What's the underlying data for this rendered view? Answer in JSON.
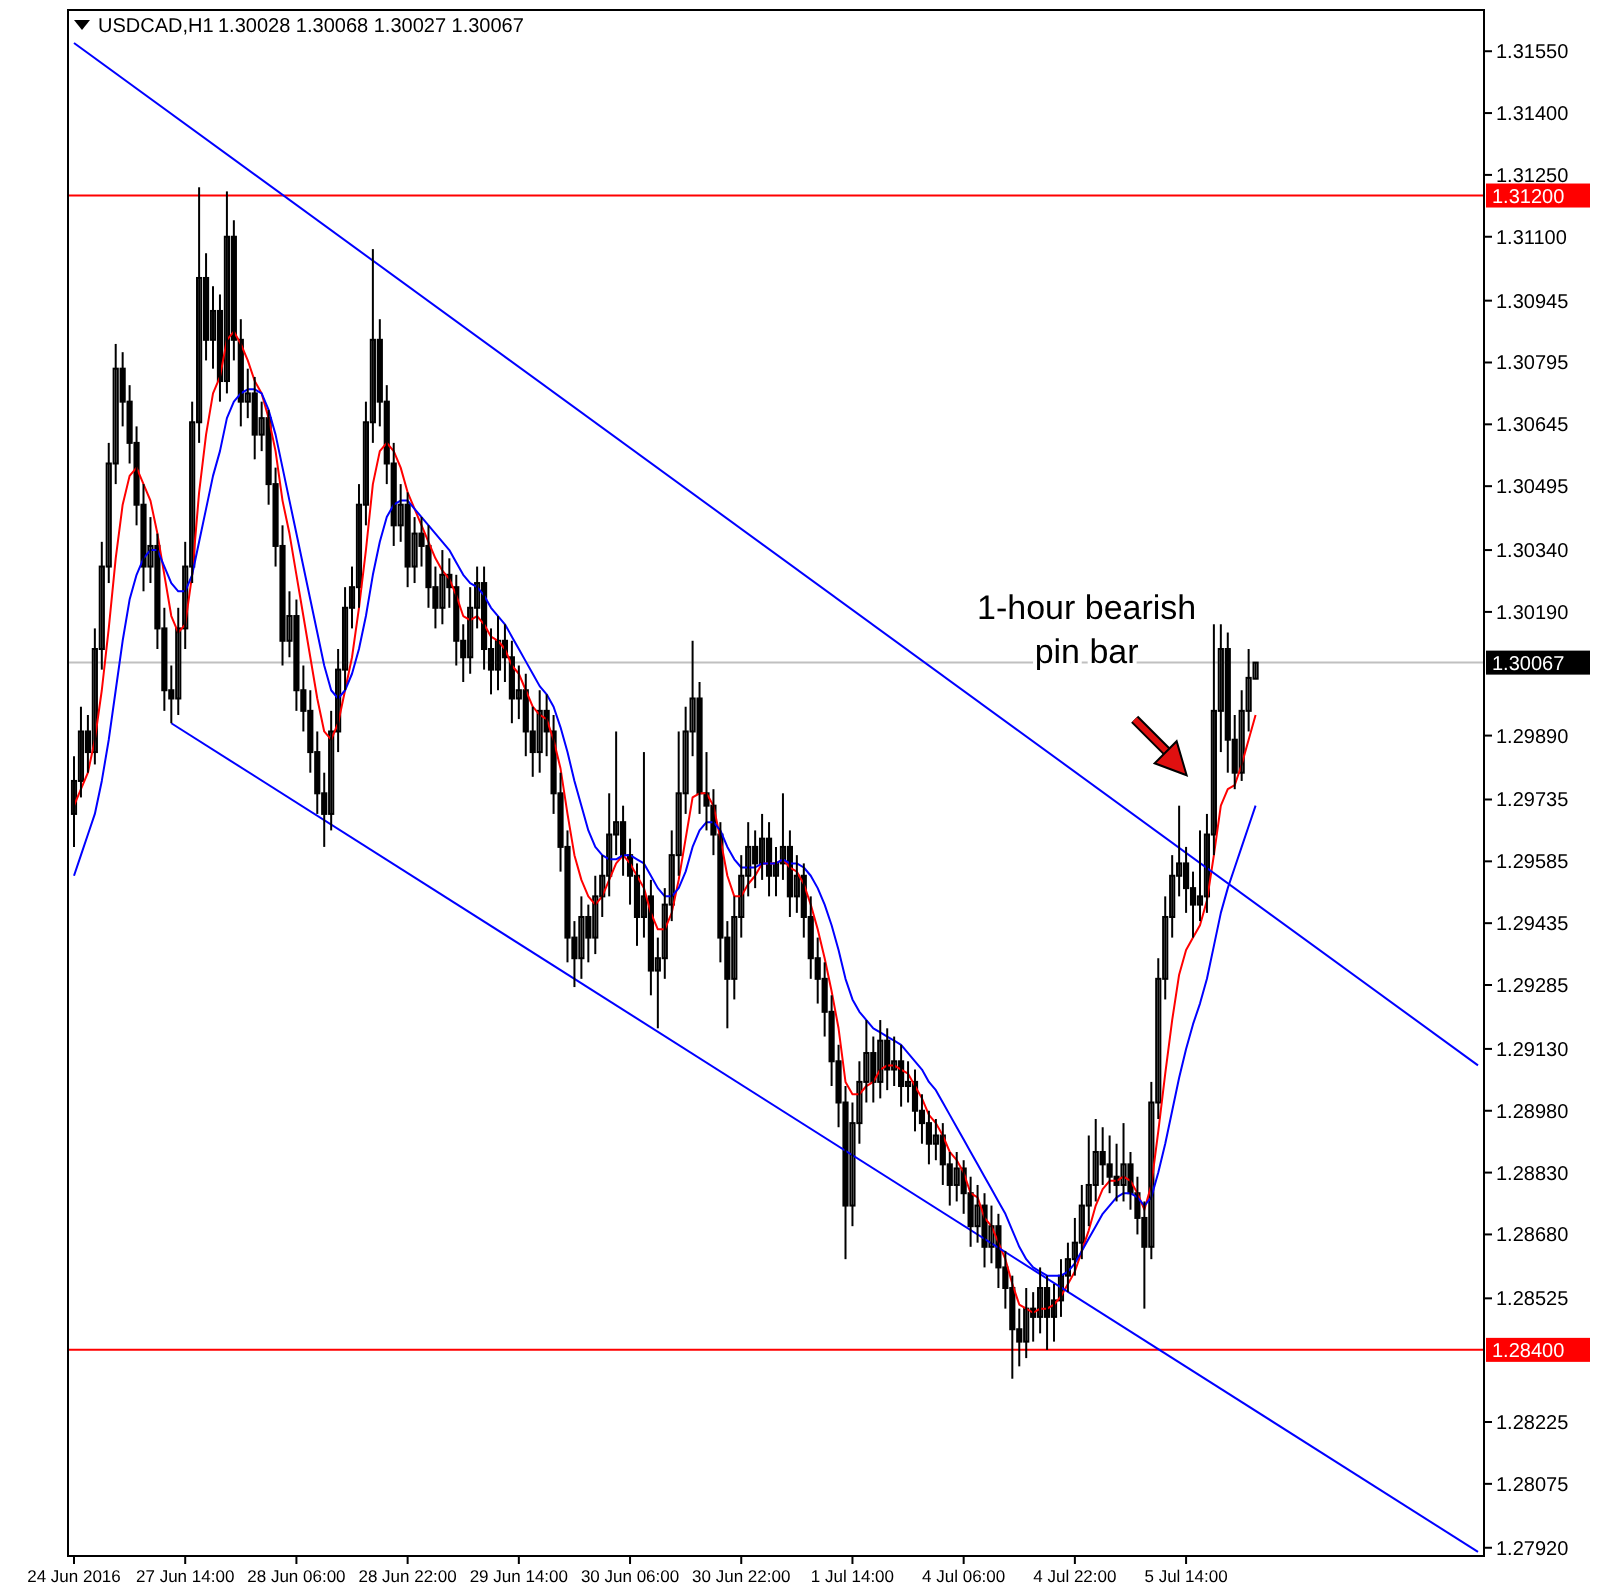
{
  "chart_data": {
    "type": "candlestick",
    "title": "USDCAD,H1",
    "subtitle": "1.30028 1.30068 1.30027 1.30067",
    "annotations": [
      "1-hour bearish pin bar"
    ],
    "categories": [
      "24 Jun 2016",
      null,
      null,
      null,
      null,
      null,
      null,
      null,
      null,
      null,
      null,
      null,
      null,
      null,
      null,
      null,
      "27 Jun 14:00",
      null,
      null,
      null,
      null,
      null,
      null,
      null,
      null,
      null,
      null,
      null,
      null,
      null,
      null,
      null,
      "28 Jun 06:00",
      null,
      null,
      null,
      null,
      null,
      null,
      null,
      null,
      null,
      null,
      null,
      null,
      null,
      null,
      null,
      "28 Jun 22:00",
      null,
      null,
      null,
      null,
      null,
      null,
      null,
      null,
      null,
      null,
      null,
      null,
      null,
      null,
      null,
      "29 Jun 14:00",
      null,
      null,
      null,
      null,
      null,
      null,
      null,
      null,
      null,
      null,
      null,
      null,
      null,
      null,
      null,
      "30 Jun 06:00",
      null,
      null,
      null,
      null,
      null,
      null,
      null,
      null,
      null,
      null,
      null,
      null,
      null,
      null,
      null,
      "30 Jun 22:00",
      null,
      null,
      null,
      null,
      null,
      null,
      null,
      null,
      null,
      null,
      null,
      null,
      null,
      null,
      null,
      "1 Jul 14:00",
      null,
      null,
      null,
      null,
      null,
      null,
      null,
      null,
      null,
      null,
      null,
      null,
      null,
      null,
      null,
      "4 Jul 06:00",
      null,
      null,
      null,
      null,
      null,
      null,
      null,
      null,
      null,
      null,
      null,
      null,
      null,
      null,
      null,
      "4 Jul 22:00",
      null,
      null,
      null,
      null,
      null,
      null,
      null,
      null,
      null,
      null,
      null,
      null,
      null,
      null,
      null,
      "5 Jul 14:00",
      null,
      null,
      null,
      null,
      null,
      null,
      null,
      null,
      null,
      null,
      null,
      null,
      null,
      null,
      null,
      null,
      null,
      null,
      null,
      null,
      null,
      null,
      null,
      null,
      null,
      null,
      null,
      null,
      null,
      null,
      null,
      null,
      null,
      null,
      null,
      null,
      null,
      null,
      null,
      null,
      null,
      null
    ],
    "ohlc": [
      [
        1.297,
        1.2984,
        1.2962,
        1.2978
      ],
      [
        1.2978,
        1.2996,
        1.2974,
        1.299
      ],
      [
        1.299,
        1.2994,
        1.298,
        1.2985
      ],
      [
        1.2985,
        1.3015,
        1.2982,
        1.301
      ],
      [
        1.301,
        1.3036,
        1.3005,
        1.303
      ],
      [
        1.303,
        1.306,
        1.3026,
        1.3055
      ],
      [
        1.3055,
        1.3084,
        1.305,
        1.3078
      ],
      [
        1.3078,
        1.3082,
        1.3064,
        1.307
      ],
      [
        1.307,
        1.3074,
        1.3055,
        1.306
      ],
      [
        1.306,
        1.3064,
        1.304,
        1.3045
      ],
      [
        1.3045,
        1.305,
        1.3024,
        1.303
      ],
      [
        1.303,
        1.3042,
        1.3026,
        1.3035
      ],
      [
        1.3035,
        1.3038,
        1.301,
        1.3015
      ],
      [
        1.3015,
        1.302,
        1.2995,
        1.3
      ],
      [
        1.3,
        1.3006,
        1.2992,
        1.2998
      ],
      [
        1.2998,
        1.302,
        1.2994,
        1.3015
      ],
      [
        1.3015,
        1.3036,
        1.301,
        1.303
      ],
      [
        1.303,
        1.307,
        1.3026,
        1.3065
      ],
      [
        1.3065,
        1.3122,
        1.306,
        1.31
      ],
      [
        1.31,
        1.3106,
        1.308,
        1.3085
      ],
      [
        1.3085,
        1.3098,
        1.3078,
        1.3092
      ],
      [
        1.3092,
        1.3096,
        1.307,
        1.3075
      ],
      [
        1.3075,
        1.3121,
        1.3072,
        1.311
      ],
      [
        1.311,
        1.3114,
        1.308,
        1.3085
      ],
      [
        1.3085,
        1.309,
        1.3064,
        1.307
      ],
      [
        1.307,
        1.3078,
        1.3066,
        1.3072
      ],
      [
        1.3072,
        1.3076,
        1.3056,
        1.3062
      ],
      [
        1.3062,
        1.307,
        1.3058,
        1.3066
      ],
      [
        1.3066,
        1.3068,
        1.3045,
        1.305
      ],
      [
        1.305,
        1.3054,
        1.303,
        1.3035
      ],
      [
        1.3035,
        1.304,
        1.3006,
        1.3012
      ],
      [
        1.3012,
        1.3024,
        1.3008,
        1.3018
      ],
      [
        1.3018,
        1.3022,
        1.2995,
        1.3
      ],
      [
        1.3,
        1.3006,
        1.299,
        1.2995
      ],
      [
        1.2995,
        1.3,
        1.298,
        1.2985
      ],
      [
        1.2985,
        1.299,
        1.297,
        1.2975
      ],
      [
        1.2975,
        1.298,
        1.2962,
        1.297
      ],
      [
        1.297,
        1.2995,
        1.2966,
        1.299
      ],
      [
        1.299,
        1.301,
        1.2985,
        1.3005
      ],
      [
        1.3005,
        1.3025,
        1.3,
        1.302
      ],
      [
        1.302,
        1.303,
        1.3015,
        1.3025
      ],
      [
        1.3025,
        1.305,
        1.302,
        1.3045
      ],
      [
        1.3045,
        1.307,
        1.304,
        1.3065
      ],
      [
        1.3065,
        1.3107,
        1.306,
        1.3085
      ],
      [
        1.3085,
        1.309,
        1.3064,
        1.307
      ],
      [
        1.307,
        1.3074,
        1.305,
        1.3055
      ],
      [
        1.3055,
        1.306,
        1.3035,
        1.304
      ],
      [
        1.304,
        1.305,
        1.3036,
        1.3045
      ],
      [
        1.3045,
        1.3048,
        1.3025,
        1.303
      ],
      [
        1.303,
        1.3042,
        1.3026,
        1.3038
      ],
      [
        1.3038,
        1.3042,
        1.303,
        1.3035
      ],
      [
        1.3035,
        1.304,
        1.302,
        1.3025
      ],
      [
        1.3025,
        1.303,
        1.3015,
        1.302
      ],
      [
        1.302,
        1.3034,
        1.3016,
        1.3028
      ],
      [
        1.3028,
        1.3032,
        1.302,
        1.3025
      ],
      [
        1.3025,
        1.3028,
        1.3006,
        1.3012
      ],
      [
        1.3012,
        1.3016,
        1.3002,
        1.3008
      ],
      [
        1.3008,
        1.3025,
        1.3004,
        1.302
      ],
      [
        1.302,
        1.303,
        1.3015,
        1.3026
      ],
      [
        1.3026,
        1.303,
        1.3005,
        1.301
      ],
      [
        1.301,
        1.3015,
        1.2999,
        1.3005
      ],
      [
        1.3005,
        1.3018,
        1.3,
        1.3012
      ],
      [
        1.3012,
        1.3016,
        1.3002,
        1.3008
      ],
      [
        1.3008,
        1.3012,
        1.2992,
        1.2998
      ],
      [
        1.2998,
        1.3006,
        1.2993,
        1.3
      ],
      [
        1.3,
        1.3004,
        1.2984,
        1.299
      ],
      [
        1.299,
        1.2996,
        1.2979,
        1.2985
      ],
      [
        1.2985,
        1.3,
        1.298,
        1.2995
      ],
      [
        1.2995,
        1.2999,
        1.2984,
        1.299
      ],
      [
        1.299,
        1.2994,
        1.297,
        1.2975
      ],
      [
        1.2975,
        1.298,
        1.2956,
        1.2962
      ],
      [
        1.2962,
        1.2966,
        1.2934,
        1.294
      ],
      [
        1.294,
        1.2944,
        1.2928,
        1.2935
      ],
      [
        1.2935,
        1.295,
        1.293,
        1.2945
      ],
      [
        1.2945,
        1.2948,
        1.2934,
        1.294
      ],
      [
        1.294,
        1.2955,
        1.2936,
        1.295
      ],
      [
        1.295,
        1.296,
        1.2945,
        1.2955
      ],
      [
        1.2955,
        1.2975,
        1.295,
        1.2965
      ],
      [
        1.2965,
        1.299,
        1.296,
        1.2968
      ],
      [
        1.2968,
        1.2972,
        1.2955,
        1.296
      ],
      [
        1.296,
        1.2964,
        1.2948,
        1.2955
      ],
      [
        1.2955,
        1.2958,
        1.2938,
        1.2945
      ],
      [
        1.2945,
        1.2985,
        1.294,
        1.295
      ],
      [
        1.295,
        1.2954,
        1.2926,
        1.2932
      ],
      [
        1.2932,
        1.294,
        1.2918,
        1.2935
      ],
      [
        1.2935,
        1.2952,
        1.293,
        1.2948
      ],
      [
        1.2948,
        1.2966,
        1.2944,
        1.296
      ],
      [
        1.296,
        1.299,
        1.2955,
        1.2975
      ],
      [
        1.2975,
        1.2996,
        1.297,
        1.299
      ],
      [
        1.299,
        1.3012,
        1.2984,
        1.2998
      ],
      [
        1.2998,
        1.3002,
        1.297,
        1.2975
      ],
      [
        1.2975,
        1.2985,
        1.2966,
        1.2972
      ],
      [
        1.2972,
        1.2976,
        1.296,
        1.2965
      ],
      [
        1.2965,
        1.2968,
        1.2934,
        1.294
      ],
      [
        1.294,
        1.2944,
        1.2918,
        1.293
      ],
      [
        1.293,
        1.295,
        1.2925,
        1.2945
      ],
      [
        1.2945,
        1.296,
        1.294,
        1.2955
      ],
      [
        1.2955,
        1.2968,
        1.295,
        1.2962
      ],
      [
        1.2962,
        1.2966,
        1.2952,
        1.2958
      ],
      [
        1.2958,
        1.297,
        1.2954,
        1.2964
      ],
      [
        1.2964,
        1.2968,
        1.295,
        1.2955
      ],
      [
        1.2955,
        1.2962,
        1.295,
        1.2958
      ],
      [
        1.2958,
        1.2975,
        1.2954,
        1.2962
      ],
      [
        1.2962,
        1.2966,
        1.2945,
        1.295
      ],
      [
        1.295,
        1.296,
        1.2946,
        1.2955
      ],
      [
        1.2955,
        1.2958,
        1.294,
        1.2945
      ],
      [
        1.2945,
        1.295,
        1.293,
        1.2935
      ],
      [
        1.2935,
        1.294,
        1.2924,
        1.293
      ],
      [
        1.293,
        1.2934,
        1.2916,
        1.2922
      ],
      [
        1.2922,
        1.2926,
        1.2904,
        1.291
      ],
      [
        1.291,
        1.2914,
        1.2894,
        1.29
      ],
      [
        1.29,
        1.2904,
        1.2862,
        1.2875
      ],
      [
        1.2875,
        1.29,
        1.287,
        1.2895
      ],
      [
        1.2895,
        1.291,
        1.289,
        1.2905
      ],
      [
        1.2905,
        1.292,
        1.29,
        1.2912
      ],
      [
        1.2912,
        1.2916,
        1.29,
        1.2905
      ],
      [
        1.2905,
        1.292,
        1.2901,
        1.2915
      ],
      [
        1.2915,
        1.2918,
        1.2903,
        1.2908
      ],
      [
        1.2908,
        1.2916,
        1.2904,
        1.291
      ],
      [
        1.291,
        1.2914,
        1.2899,
        1.2904
      ],
      [
        1.2904,
        1.291,
        1.29,
        1.2905
      ],
      [
        1.2905,
        1.2908,
        1.2893,
        1.2898
      ],
      [
        1.2898,
        1.2902,
        1.289,
        1.2895
      ],
      [
        1.2895,
        1.2898,
        1.2885,
        1.289
      ],
      [
        1.289,
        1.2896,
        1.2886,
        1.2892
      ],
      [
        1.2892,
        1.2895,
        1.288,
        1.2885
      ],
      [
        1.2885,
        1.2888,
        1.2875,
        1.288
      ],
      [
        1.288,
        1.2888,
        1.2876,
        1.2884
      ],
      [
        1.2884,
        1.2886,
        1.2873,
        1.2878
      ],
      [
        1.2878,
        1.2882,
        1.2865,
        1.287
      ],
      [
        1.287,
        1.288,
        1.2866,
        1.2875
      ],
      [
        1.2875,
        1.2878,
        1.286,
        1.2865
      ],
      [
        1.2865,
        1.2875,
        1.2861,
        1.287
      ],
      [
        1.287,
        1.2873,
        1.2855,
        1.286
      ],
      [
        1.286,
        1.2864,
        1.285,
        1.2855
      ],
      [
        1.2855,
        1.2858,
        1.2833,
        1.2845
      ],
      [
        1.2845,
        1.285,
        1.2836,
        1.2842
      ],
      [
        1.2842,
        1.2855,
        1.2838,
        1.285
      ],
      [
        1.285,
        1.2854,
        1.2842,
        1.2848
      ],
      [
        1.2848,
        1.286,
        1.2844,
        1.2855
      ],
      [
        1.2855,
        1.2858,
        1.284,
        1.2848
      ],
      [
        1.2848,
        1.2856,
        1.2842,
        1.2852
      ],
      [
        1.2852,
        1.2862,
        1.2848,
        1.2858
      ],
      [
        1.2858,
        1.2866,
        1.2854,
        1.2862
      ],
      [
        1.2862,
        1.2872,
        1.2858,
        1.2866
      ],
      [
        1.2866,
        1.288,
        1.2862,
        1.2875
      ],
      [
        1.2875,
        1.2892,
        1.287,
        1.288
      ],
      [
        1.288,
        1.2896,
        1.2876,
        1.2888
      ],
      [
        1.2888,
        1.2894,
        1.288,
        1.2885
      ],
      [
        1.2885,
        1.2892,
        1.2878,
        1.2882
      ],
      [
        1.2882,
        1.289,
        1.2876,
        1.288
      ],
      [
        1.288,
        1.2895,
        1.2876,
        1.2885
      ],
      [
        1.2885,
        1.2888,
        1.2874,
        1.2878
      ],
      [
        1.2878,
        1.2882,
        1.2868,
        1.2872
      ],
      [
        1.2872,
        1.2876,
        1.285,
        1.2865
      ],
      [
        1.2865,
        1.2905,
        1.2862,
        1.29
      ],
      [
        1.29,
        1.2935,
        1.2896,
        1.293
      ],
      [
        1.293,
        1.295,
        1.2925,
        1.2945
      ],
      [
        1.2945,
        1.296,
        1.294,
        1.2955
      ],
      [
        1.2955,
        1.2972,
        1.295,
        1.2958
      ],
      [
        1.2958,
        1.2962,
        1.2946,
        1.2952
      ],
      [
        1.2952,
        1.2956,
        1.294,
        1.2948
      ],
      [
        1.2948,
        1.2966,
        1.2944,
        1.295
      ],
      [
        1.295,
        1.297,
        1.2946,
        1.2965
      ],
      [
        1.2965,
        1.3016,
        1.296,
        1.2995
      ],
      [
        1.2995,
        1.3016,
        1.2985,
        1.301
      ],
      [
        1.301,
        1.3014,
        1.298,
        1.2988
      ],
      [
        1.2988,
        1.2994,
        1.2976,
        1.298
      ],
      [
        1.298,
        1.3,
        1.2978,
        1.2995
      ],
      [
        1.2995,
        1.301,
        1.299,
        1.3003
      ],
      [
        1.30028,
        1.30068,
        1.30027,
        1.30067
      ],
      null,
      null,
      null,
      null,
      null,
      null,
      null,
      null,
      null,
      null,
      null,
      null,
      null,
      null,
      null,
      null,
      null,
      null,
      null,
      null,
      null,
      null,
      null,
      null,
      null,
      null,
      null,
      null,
      null,
      null,
      null,
      null
    ],
    "series": [
      {
        "type": "line",
        "color": "#ff0000",
        "values": [
          1.2972,
          1.2976,
          1.298,
          1.2988,
          1.3,
          1.3015,
          1.3032,
          1.3045,
          1.3052,
          1.3054,
          1.305,
          1.3046,
          1.3038,
          1.3028,
          1.3018,
          1.3014,
          1.3016,
          1.3028,
          1.3048,
          1.3062,
          1.3072,
          1.3076,
          1.3085,
          1.3087,
          1.3084,
          1.308,
          1.3075,
          1.3072,
          1.3066,
          1.3058,
          1.3046,
          1.3038,
          1.3028,
          1.3018,
          1.3008,
          1.2998,
          1.299,
          1.2988,
          1.2992,
          1.3,
          1.3008,
          1.302,
          1.3034,
          1.305,
          1.3058,
          1.306,
          1.3058,
          1.3054,
          1.3048,
          1.3044,
          1.304,
          1.3036,
          1.3032,
          1.3029,
          1.3027,
          1.3023,
          1.3018,
          1.3017,
          1.3018,
          1.3016,
          1.3013,
          1.3012,
          1.301,
          1.3006,
          1.3004,
          1.3,
          1.2996,
          1.2994,
          1.2993,
          1.2988,
          1.2981,
          1.297,
          1.296,
          1.2954,
          1.295,
          1.2948,
          1.295,
          1.2954,
          1.2958,
          1.296,
          1.2958,
          1.2955,
          1.2952,
          1.2946,
          1.2942,
          1.2942,
          1.2946,
          1.2954,
          1.2964,
          1.2974,
          1.2975,
          1.2975,
          1.2972,
          1.2964,
          1.2955,
          1.295,
          1.295,
          1.2953,
          1.2955,
          1.2958,
          1.2958,
          1.2958,
          1.2959,
          1.2957,
          1.2956,
          1.2953,
          1.2948,
          1.2942,
          1.2935,
          1.2927,
          1.2918,
          1.2905,
          1.2902,
          1.2902,
          1.2904,
          1.2905,
          1.2908,
          1.2909,
          1.2909,
          1.2908,
          1.2907,
          1.2904,
          1.2901,
          1.2897,
          1.2895,
          1.2892,
          1.2888,
          1.2886,
          1.2883,
          1.2878,
          1.2877,
          1.2872,
          1.287,
          1.2866,
          1.2862,
          1.2856,
          1.2851,
          1.285,
          1.2849,
          1.285,
          1.285,
          1.2851,
          1.2853,
          1.2856,
          1.2859,
          1.2864,
          1.2869,
          1.2875,
          1.2879,
          1.2881,
          1.2881,
          1.2882,
          1.2881,
          1.2878,
          1.2874,
          1.288,
          1.2893,
          1.2907,
          1.292,
          1.2931,
          1.2937,
          1.294,
          1.2943,
          1.2949,
          1.296,
          1.2972,
          1.2976,
          1.2977,
          1.2982,
          1.2988,
          1.2994,
          null,
          null,
          null,
          null,
          null,
          null,
          null,
          null,
          null,
          null,
          null,
          null,
          null,
          null,
          null,
          null,
          null,
          null,
          null,
          null,
          null,
          null,
          null,
          null,
          null,
          null,
          null,
          null,
          null,
          null,
          null,
          null
        ]
      },
      {
        "type": "line",
        "color": "#0000ff",
        "values": [
          1.2955,
          1.296,
          1.2965,
          1.297,
          1.2978,
          1.2988,
          1.3,
          1.3012,
          1.3022,
          1.3028,
          1.3032,
          1.3034,
          1.3034,
          1.303,
          1.3026,
          1.3024,
          1.3024,
          1.3028,
          1.3036,
          1.3044,
          1.3052,
          1.3058,
          1.3066,
          1.307,
          1.3072,
          1.3073,
          1.3073,
          1.3072,
          1.3068,
          1.3062,
          1.3054,
          1.3046,
          1.3038,
          1.303,
          1.3022,
          1.3014,
          1.3006,
          1.3,
          1.2998,
          1.3,
          1.3004,
          1.301,
          1.3018,
          1.3028,
          1.3036,
          1.3042,
          1.3045,
          1.3046,
          1.3046,
          1.3044,
          1.3042,
          1.304,
          1.3038,
          1.3036,
          1.3034,
          1.3031,
          1.3028,
          1.3026,
          1.3025,
          1.3023,
          1.302,
          1.3018,
          1.3016,
          1.3013,
          1.301,
          1.3007,
          1.3004,
          1.3001,
          1.2999,
          1.2996,
          1.2991,
          1.2985,
          1.2978,
          1.2972,
          1.2966,
          1.2962,
          1.296,
          1.2959,
          1.2959,
          1.296,
          1.296,
          1.2959,
          1.2958,
          1.2955,
          1.2952,
          1.295,
          1.295,
          1.2952,
          1.2956,
          1.2962,
          1.2966,
          1.2968,
          1.2968,
          1.2966,
          1.2962,
          1.2959,
          1.2957,
          1.2957,
          1.2957,
          1.2958,
          1.2958,
          1.2958,
          1.2959,
          1.2958,
          1.2958,
          1.2957,
          1.2955,
          1.2952,
          1.2948,
          1.2943,
          1.2937,
          1.293,
          1.2925,
          1.2922,
          1.292,
          1.2918,
          1.2917,
          1.2916,
          1.2915,
          1.2914,
          1.2912,
          1.291,
          1.2908,
          1.2905,
          1.2903,
          1.29,
          1.2897,
          1.2894,
          1.2891,
          1.2888,
          1.2885,
          1.2882,
          1.2879,
          1.2876,
          1.2873,
          1.2869,
          1.2865,
          1.2862,
          1.286,
          1.2859,
          1.2858,
          1.2858,
          1.2858,
          1.2859,
          1.2861,
          1.2864,
          1.2867,
          1.287,
          1.2873,
          1.2875,
          1.2877,
          1.2878,
          1.2878,
          1.2877,
          1.2875,
          1.2877,
          1.2883,
          1.289,
          1.2898,
          1.2906,
          1.2913,
          1.2919,
          1.2924,
          1.293,
          1.2938,
          1.2946,
          1.2952,
          1.2957,
          1.2962,
          1.2967,
          1.2972,
          null,
          null,
          null,
          null,
          null,
          null,
          null,
          null,
          null,
          null,
          null,
          null,
          null,
          null,
          null,
          null,
          null,
          null,
          null,
          null,
          null,
          null,
          null,
          null,
          null,
          null,
          null,
          null,
          null,
          null,
          null,
          null
        ]
      },
      {
        "type": "line",
        "color": "#0000ff",
        "values": [
          1.3157,
          null,
          null,
          null,
          null,
          null,
          null,
          null,
          null,
          null,
          null,
          null,
          null,
          null,
          null,
          null,
          null,
          null,
          null,
          null,
          null,
          null,
          null,
          null,
          null,
          null,
          null,
          null,
          null,
          null,
          null,
          null,
          null,
          null,
          null,
          null,
          null,
          null,
          null,
          null,
          null,
          null,
          null,
          null,
          null,
          null,
          null,
          null,
          null,
          null,
          null,
          null,
          null,
          null,
          null,
          null,
          null,
          null,
          null,
          null,
          null,
          null,
          null,
          null,
          null,
          null,
          null,
          null,
          null,
          null,
          null,
          null,
          null,
          null,
          null,
          null,
          null,
          null,
          null,
          null,
          null,
          null,
          null,
          null,
          null,
          null,
          null,
          null,
          null,
          null,
          null,
          null,
          null,
          null,
          null,
          null,
          null,
          null,
          null,
          null,
          null,
          null,
          null,
          null,
          null,
          null,
          null,
          null,
          null,
          null,
          null,
          null,
          null,
          null,
          null,
          null,
          null,
          null,
          null,
          null,
          null,
          null,
          null,
          null,
          null,
          null,
          null,
          null,
          null,
          null,
          null,
          null,
          null,
          null,
          null,
          null,
          null,
          null,
          null,
          null,
          null,
          null,
          null,
          null,
          null,
          null,
          null,
          null,
          null,
          null,
          null,
          null,
          null,
          null,
          null,
          null,
          null,
          null,
          null,
          null,
          null,
          null,
          null,
          null,
          null,
          null,
          null,
          null,
          null,
          null,
          null,
          null,
          null,
          null,
          null,
          null,
          null,
          null,
          null,
          null,
          null,
          null,
          null,
          null,
          null,
          null,
          null,
          null,
          null,
          null,
          null,
          null,
          null,
          null,
          null,
          null,
          null,
          null,
          null,
          null,
          null,
          null,
          1.2909
        ]
      },
      {
        "type": "line",
        "color": "#0000ff",
        "values": [
          null,
          null,
          null,
          null,
          null,
          null,
          null,
          null,
          null,
          null,
          null,
          null,
          null,
          null,
          1.2992,
          null,
          null,
          null,
          null,
          null,
          null,
          null,
          null,
          null,
          null,
          null,
          null,
          null,
          null,
          null,
          null,
          null,
          null,
          null,
          null,
          null,
          null,
          null,
          null,
          null,
          null,
          null,
          null,
          null,
          null,
          null,
          null,
          null,
          null,
          null,
          null,
          null,
          null,
          null,
          null,
          null,
          null,
          null,
          null,
          null,
          null,
          null,
          null,
          null,
          null,
          null,
          null,
          null,
          null,
          null,
          null,
          null,
          null,
          null,
          null,
          null,
          null,
          null,
          null,
          null,
          null,
          null,
          null,
          null,
          null,
          null,
          null,
          null,
          null,
          null,
          null,
          null,
          null,
          null,
          null,
          null,
          null,
          null,
          null,
          null,
          null,
          null,
          null,
          null,
          null,
          null,
          null,
          null,
          null,
          null,
          null,
          null,
          null,
          null,
          null,
          null,
          null,
          null,
          null,
          null,
          null,
          null,
          null,
          null,
          null,
          null,
          null,
          null,
          null,
          null,
          null,
          null,
          null,
          null,
          null,
          null,
          null,
          null,
          null,
          null,
          null,
          null,
          null,
          null,
          null,
          null,
          null,
          null,
          null,
          null,
          null,
          null,
          null,
          null,
          null,
          null,
          null,
          null,
          null,
          null,
          null,
          null,
          null,
          null,
          null,
          null,
          null,
          null,
          null,
          null,
          null,
          null,
          null,
          null,
          null,
          null,
          null,
          null,
          null,
          null,
          null,
          null,
          null,
          null,
          null,
          null,
          null,
          null,
          null,
          null,
          null,
          null,
          null,
          null,
          null,
          null,
          null,
          null,
          null,
          null,
          null,
          null,
          1.2791
        ]
      }
    ],
    "ylim": [
      1.279,
      1.3165
    ],
    "yticks": [
      {
        "value": 1.3155,
        "label": "1.31550"
      },
      {
        "value": 1.314,
        "label": "1.31400"
      },
      {
        "value": 1.3125,
        "label": "1.31250"
      },
      {
        "value": 1.311,
        "label": "1.31100"
      },
      {
        "value": 1.30945,
        "label": "1.30945"
      },
      {
        "value": 1.30795,
        "label": "1.30795"
      },
      {
        "value": 1.30645,
        "label": "1.30645"
      },
      {
        "value": 1.30495,
        "label": "1.30495"
      },
      {
        "value": 1.3034,
        "label": "1.30340"
      },
      {
        "value": 1.3019,
        "label": "1.30190"
      },
      {
        "value": 1.2989,
        "label": "1.29890"
      },
      {
        "value": 1.29735,
        "label": "1.29735"
      },
      {
        "value": 1.29585,
        "label": "1.29585"
      },
      {
        "value": 1.29435,
        "label": "1.29435"
      },
      {
        "value": 1.29285,
        "label": "1.29285"
      },
      {
        "value": 1.2913,
        "label": "1.29130"
      },
      {
        "value": 1.2898,
        "label": "1.28980"
      },
      {
        "value": 1.2883,
        "label": "1.28830"
      },
      {
        "value": 1.2868,
        "label": "1.28680"
      },
      {
        "value": 1.28525,
        "label": "1.28525"
      },
      {
        "value": 1.28225,
        "label": "1.28225"
      },
      {
        "value": 1.28075,
        "label": "1.28075"
      },
      {
        "value": 1.2792,
        "label": "1.27920"
      }
    ],
    "ref_lines": [
      {
        "axis": "y",
        "value": 1.312,
        "label": "1.31200",
        "color": "#ff0000"
      },
      {
        "axis": "y",
        "value": 1.284,
        "label": "1.28400",
        "color": "#ff0000"
      },
      {
        "axis": "y",
        "value": 1.30067,
        "label": "1.30067",
        "color": "#c0c0c0"
      }
    ],
    "grid": false
  }
}
